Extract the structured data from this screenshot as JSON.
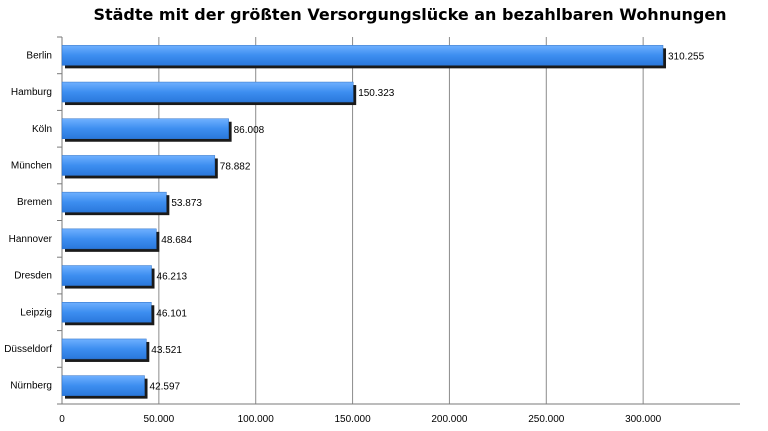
{
  "chart_data": {
    "type": "bar",
    "orientation": "horizontal",
    "title": "Städte mit der größten Versorgungslücke an bezahlbaren Wohnungen",
    "categories": [
      "Berlin",
      "Hamburg",
      "Köln",
      "München",
      "Bremen",
      "Hannover",
      "Dresden",
      "Leipzig",
      "Düsseldorf",
      "Nürnberg"
    ],
    "values": [
      310255,
      150323,
      86008,
      78882,
      53873,
      48684,
      46213,
      46101,
      43521,
      42597
    ],
    "value_labels": [
      "310.255",
      "150.323",
      "86.008",
      "78.882",
      "53.873",
      "48.684",
      "46.213",
      "46.101",
      "43.521",
      "42.597"
    ],
    "xlim": [
      0,
      350000
    ],
    "x_ticks": [
      0,
      50000,
      100000,
      150000,
      200000,
      250000,
      300000
    ],
    "x_tick_labels": [
      "0",
      "50.000",
      "100.000",
      "150.000",
      "200.000",
      "250.000",
      "300.000"
    ],
    "grid": true,
    "legend": "none",
    "colors": {
      "bar": "#3d8ef0",
      "bar_top": "#6fb0ff",
      "shadow": "#1a1a1a",
      "grid": "#8c8c8c"
    }
  }
}
